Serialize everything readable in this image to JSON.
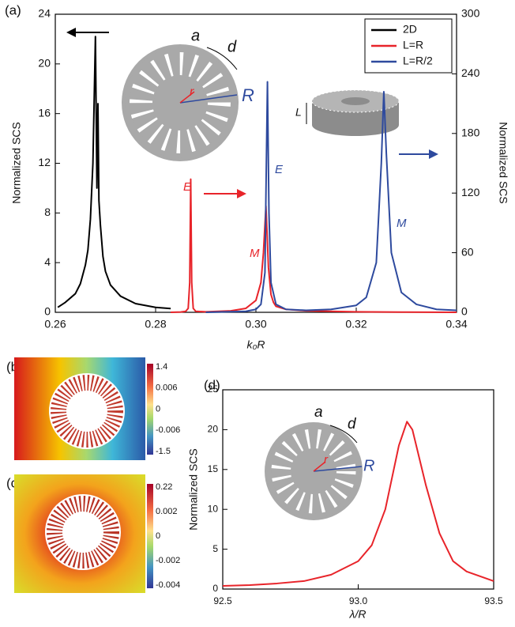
{
  "chart_data": [
    {
      "type": "line",
      "panel_label": "(a)",
      "xlabel": "k₀R",
      "ylabel": "Normalized SCS",
      "y2label": "Normalized SCS",
      "xlim": [
        0.26,
        0.34
      ],
      "xticks": [
        0.26,
        0.28,
        {
          "value": 0.3,
          "label": "0.30"
        },
        0.32,
        0.34
      ],
      "ylim": [
        0,
        24
      ],
      "yticks": [
        0,
        4,
        8,
        12,
        16,
        20,
        24
      ],
      "y2lim": [
        0,
        300
      ],
      "y2ticks": [
        0,
        60,
        120,
        180,
        240,
        300
      ],
      "legend": "upper right",
      "annotations": [
        "E",
        "M",
        "E",
        "M",
        "a",
        "d",
        "r",
        "R",
        "L"
      ],
      "series": [
        {
          "name": "2D",
          "color": "#000000",
          "x": [
            0.2605,
            0.262,
            0.264,
            0.265,
            0.266,
            0.2665,
            0.267,
            0.2675,
            0.268,
            0.2683,
            0.2685,
            0.2687,
            0.269,
            0.2695,
            0.27,
            0.271,
            0.273,
            0.276,
            0.28,
            0.283
          ],
          "values": [
            0.4,
            0.8,
            1.5,
            2.3,
            3.8,
            5,
            7.5,
            12,
            22.2,
            10,
            16.8,
            9,
            7,
            4.5,
            3.3,
            2.2,
            1.3,
            0.7,
            0.4,
            0.3
          ]
        },
        {
          "name": "L=R",
          "color": "#e8242a",
          "axis": "y2",
          "x": [
            0.283,
            0.285,
            0.286,
            0.2865,
            0.2868,
            0.287,
            0.2872,
            0.2875,
            0.288,
            0.29,
            0.295,
            0.298,
            0.3,
            0.301,
            0.3015,
            0.302,
            0.3025,
            0.303,
            0.3035,
            0.304,
            0.306,
            0.31,
            0.32,
            0.33,
            0.34
          ],
          "values": [
            0,
            0.3,
            1,
            4,
            30,
            134,
            30,
            4,
            1,
            0.5,
            1.5,
            4,
            12,
            30,
            60,
            107,
            45,
            18,
            10,
            6,
            3,
            1.5,
            0.5,
            0.2,
            0
          ]
        },
        {
          "name": "L=R/2",
          "color": "#2e4a9e",
          "axis": "y2",
          "x": [
            0.29,
            0.298,
            0.3,
            0.301,
            0.3018,
            0.302,
            0.3023,
            0.3026,
            0.303,
            0.304,
            0.306,
            0.31,
            0.315,
            0.32,
            0.322,
            0.324,
            0.325,
            0.3255,
            0.326,
            0.327,
            0.329,
            0.332,
            0.336,
            0.34
          ],
          "values": [
            0,
            1,
            3,
            8,
            40,
            120,
            232,
            100,
            30,
            8,
            3,
            2,
            3,
            7,
            15,
            50,
            150,
            222,
            160,
            60,
            20,
            8,
            3,
            2
          ]
        }
      ]
    },
    {
      "type": "line",
      "panel_label": "(d)",
      "xlabel": "λ/R",
      "ylabel": "Normalized SCS",
      "xlim": [
        92.5,
        93.5
      ],
      "xticks": [
        92.5,
        {
          "value": 93,
          "label": "93.0"
        },
        93.5
      ],
      "ylim": [
        0,
        25
      ],
      "yticks": [
        0,
        5,
        10,
        15,
        20,
        25
      ],
      "annotations": [
        "a",
        "d",
        "r",
        "R"
      ],
      "series": [
        {
          "color": "#e8242a",
          "x": [
            92.5,
            92.6,
            92.7,
            92.8,
            92.9,
            93.0,
            93.05,
            93.1,
            93.15,
            93.18,
            93.2,
            93.25,
            93.3,
            93.35,
            93.4,
            93.5
          ],
          "values": [
            0.4,
            0.5,
            0.7,
            1.0,
            1.8,
            3.5,
            5.5,
            10,
            18,
            21,
            20,
            13,
            7,
            3.5,
            2.2,
            1.0
          ]
        }
      ]
    }
  ],
  "colormaps": [
    {
      "panel_label": "(b)",
      "scale": [
        "1.4",
        "0.006",
        "0",
        "-0.006",
        "-1.5"
      ]
    },
    {
      "panel_label": "(c)",
      "scale": [
        "0.22",
        "0.002",
        "0",
        "-0.002",
        "-0.004"
      ]
    }
  ]
}
